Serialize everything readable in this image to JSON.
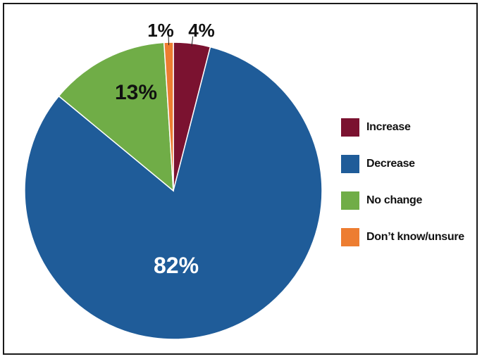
{
  "chart_data": {
    "type": "pie",
    "title": "",
    "slices": [
      {
        "label": "Increase",
        "value": 4,
        "display": "4%",
        "color": "#7b1230"
      },
      {
        "label": "Decrease",
        "value": 82,
        "display": "82%",
        "color": "#1f5c99"
      },
      {
        "label": "No change",
        "value": 13,
        "display": "13%",
        "color": "#70ad47"
      },
      {
        "label": "Don’t know/unsure",
        "value": 1,
        "display": "1%",
        "color": "#ed7d31"
      }
    ],
    "legend_placement": "right"
  }
}
